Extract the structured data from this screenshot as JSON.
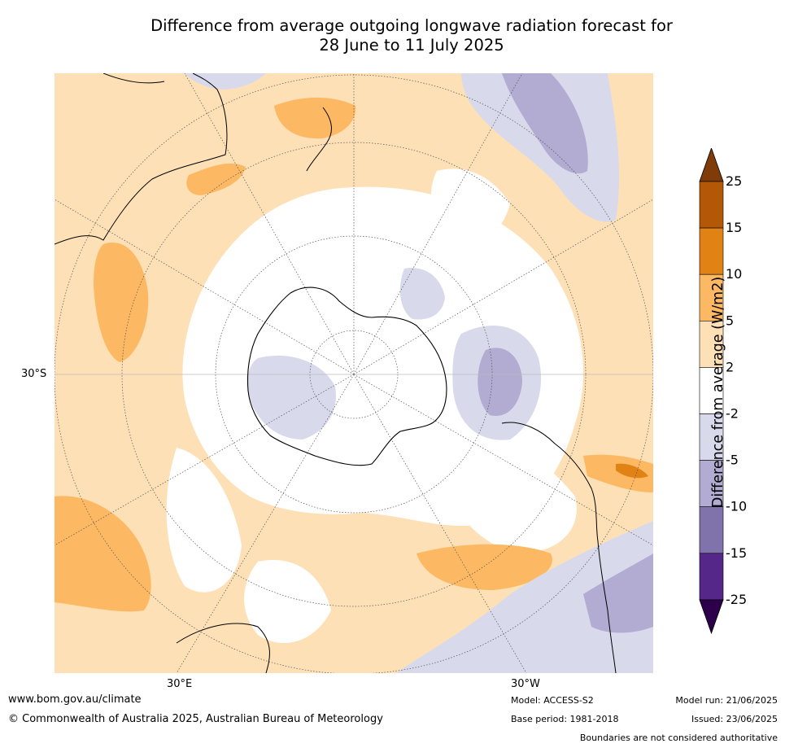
{
  "title": {
    "line1": "Difference from average outgoing longwave radiation forecast for",
    "line2": "28 June to 11 July 2025"
  },
  "map": {
    "projection": "south-polar stereographic",
    "lat_label": "30°S",
    "lon_labels": [
      "30°E",
      "30°W"
    ]
  },
  "colorbar": {
    "title": "Difference from average (W/m2)",
    "tick_labels": [
      "25",
      "15",
      "10",
      "5",
      "2",
      "-2",
      "-5",
      "-10",
      "-15",
      "-25"
    ],
    "bins": [
      {
        "range": ">25",
        "color": "#7f3b08"
      },
      {
        "range": "15 to 25",
        "color": "#b35806"
      },
      {
        "range": "10 to 15",
        "color": "#e08214"
      },
      {
        "range": "5 to 10",
        "color": "#fdb863"
      },
      {
        "range": "2 to 5",
        "color": "#fee0b6"
      },
      {
        "range": "-2 to 2",
        "color": "#ffffff"
      },
      {
        "range": "-5 to -2",
        "color": "#d8daeb"
      },
      {
        "range": "-10 to -5",
        "color": "#b2abd2"
      },
      {
        "range": "-15 to -10",
        "color": "#8073ac"
      },
      {
        "range": "-25 to -15",
        "color": "#542788"
      },
      {
        "range": "<-25",
        "color": "#2d004b"
      }
    ]
  },
  "footer": {
    "website": "www.bom.gov.au/climate",
    "copyright": "© Commonwealth of Australia 2025, Australian Bureau of Meteorology",
    "model": "Model: ACCESS-S2",
    "base_period": "Base period: 1981-2018",
    "model_run": "Model run: 21/06/2025",
    "issued": "Issued: 23/06/2025",
    "disclaimer": "Boundaries are not considered authoritative"
  }
}
